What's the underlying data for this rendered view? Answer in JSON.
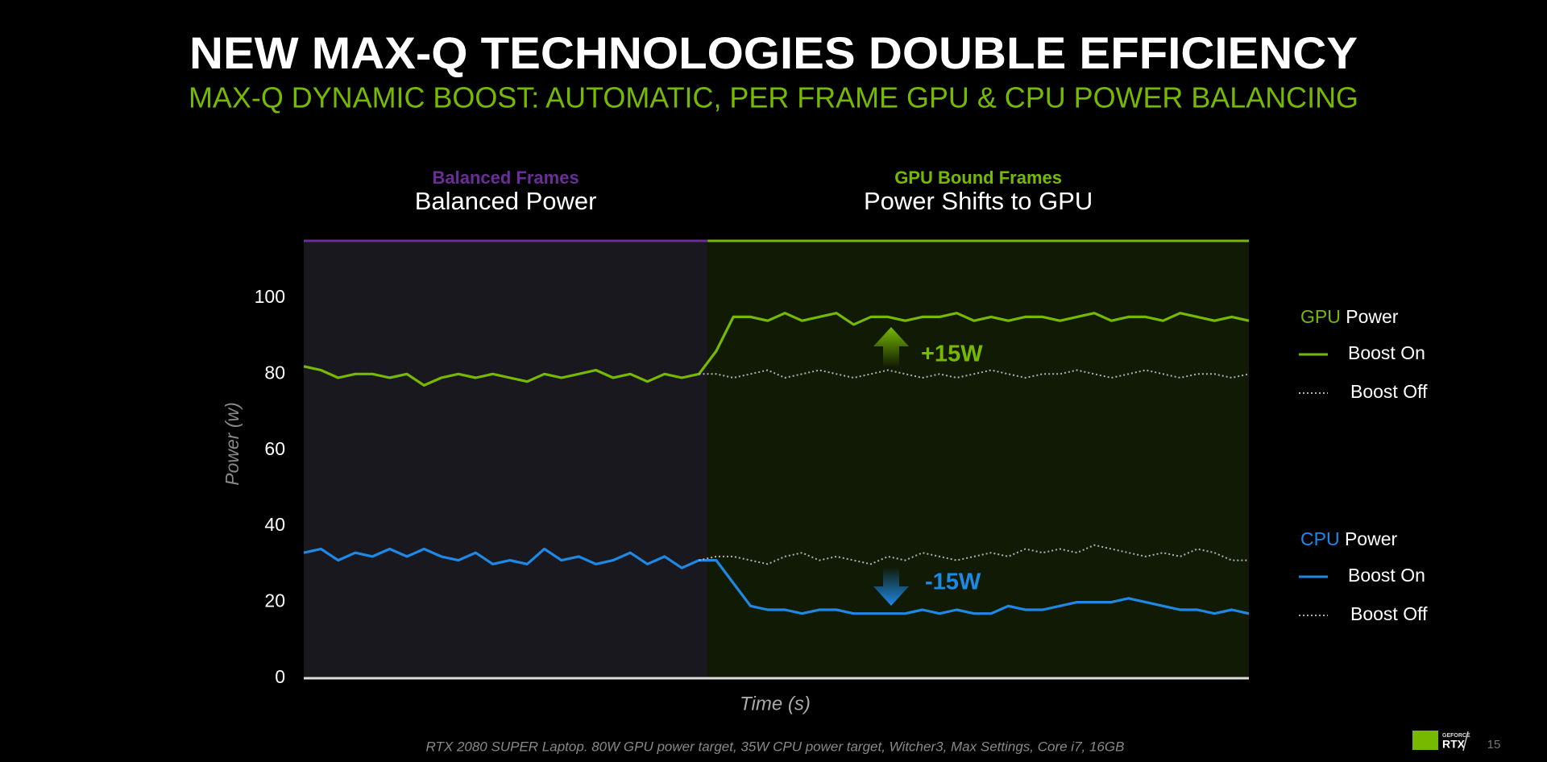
{
  "chart_data": {
    "type": "line",
    "title": "NEW MAX-Q TECHNOLOGIES DOUBLE EFFICIENCY",
    "subtitle": "MAX-Q DYNAMIC BOOST: AUTOMATIC, PER FRAME GPU & CPU POWER BALANCING",
    "y_label": "Power (w)",
    "x_label": "Time (s)",
    "footnote": "RTX 2080 SUPER Laptop. 80W GPU power target, 35W CPU power target, Witcher3, Max Settings, Core i7, 16GB",
    "page_number": "15",
    "logo": {
      "brand": "GEFORCE",
      "product": "RTX"
    },
    "regions": [
      {
        "label": "Balanced Frames",
        "sublabel": "Balanced Power",
        "color": "#6b2d98",
        "background": "#19181f"
      },
      {
        "label": "GPU Bound Frames",
        "sublabel": "Power Shifts to GPU",
        "color": "#76b900",
        "background": "#111a05"
      }
    ],
    "annotations": [
      {
        "text": "+15W",
        "color": "#76b900"
      },
      {
        "text": "-15W",
        "color": "#1e88e5"
      }
    ],
    "legend_groups": [
      {
        "name": "GPU",
        "suffix": "Power",
        "color": "#76b900"
      },
      {
        "name": "CPU",
        "suffix": "Power",
        "color": "#1e88e5"
      }
    ],
    "categories": [
      null,
      null,
      null,
      null,
      null,
      null,
      null,
      null,
      null,
      null,
      null,
      null,
      null,
      null,
      null,
      null,
      null,
      null,
      null,
      null,
      null,
      null,
      null,
      null,
      null,
      null,
      null,
      null,
      null,
      null,
      null,
      null,
      null,
      null,
      null,
      null,
      null,
      null,
      null,
      null,
      null,
      null,
      null,
      null,
      null,
      null,
      null,
      null,
      null,
      null,
      null,
      null,
      null,
      null,
      null,
      null
    ],
    "ylim": [
      0,
      115
    ],
    "yticks": [
      0,
      20,
      40,
      60,
      80,
      100
    ],
    "grid": false,
    "legend": "right",
    "series": [
      {
        "name": "Boost On",
        "color": "#76b900",
        "dash": "solid",
        "values": [
          82,
          81,
          79,
          80,
          80,
          79,
          80,
          77,
          79,
          80,
          79,
          80,
          79,
          78,
          80,
          79,
          80,
          81,
          79,
          80,
          78,
          80,
          79,
          80,
          86,
          95,
          95,
          94,
          96,
          94,
          95,
          96,
          93,
          95,
          95,
          94,
          95,
          95,
          96,
          94,
          95,
          94,
          95,
          95,
          94,
          95,
          96,
          94,
          95,
          95,
          94,
          96,
          95,
          94,
          95,
          94
        ]
      },
      {
        "name": "Boost Off",
        "color": "#b0b0b0",
        "dash": "dotted",
        "values": [
          null,
          null,
          null,
          null,
          null,
          null,
          null,
          null,
          null,
          null,
          null,
          null,
          null,
          null,
          null,
          null,
          null,
          null,
          null,
          null,
          null,
          null,
          null,
          80,
          80,
          79,
          80,
          81,
          79,
          80,
          81,
          80,
          79,
          80,
          81,
          80,
          79,
          80,
          79,
          80,
          81,
          80,
          79,
          80,
          80,
          81,
          80,
          79,
          80,
          81,
          80,
          79,
          80,
          80,
          79,
          80
        ]
      },
      {
        "name": "Boost On",
        "color": "#1e88e5",
        "dash": "solid",
        "values": [
          33,
          34,
          31,
          33,
          32,
          34,
          32,
          34,
          32,
          31,
          33,
          30,
          31,
          30,
          34,
          31,
          32,
          30,
          31,
          33,
          30,
          32,
          29,
          31,
          31,
          25,
          19,
          18,
          18,
          17,
          18,
          18,
          17,
          17,
          17,
          17,
          18,
          17,
          18,
          17,
          17,
          19,
          18,
          18,
          19,
          20,
          20,
          20,
          21,
          20,
          19,
          18,
          18,
          17,
          18,
          17
        ]
      },
      {
        "name": "Boost Off",
        "color": "#b0b0b0",
        "dash": "dotted",
        "values": [
          null,
          null,
          null,
          null,
          null,
          null,
          null,
          null,
          null,
          null,
          null,
          null,
          null,
          null,
          null,
          null,
          null,
          null,
          null,
          null,
          null,
          null,
          null,
          31,
          32,
          32,
          31,
          30,
          32,
          33,
          31,
          32,
          31,
          30,
          32,
          31,
          33,
          32,
          31,
          32,
          33,
          32,
          34,
          33,
          34,
          33,
          35,
          34,
          33,
          32,
          33,
          32,
          34,
          33,
          31,
          31
        ]
      }
    ]
  }
}
